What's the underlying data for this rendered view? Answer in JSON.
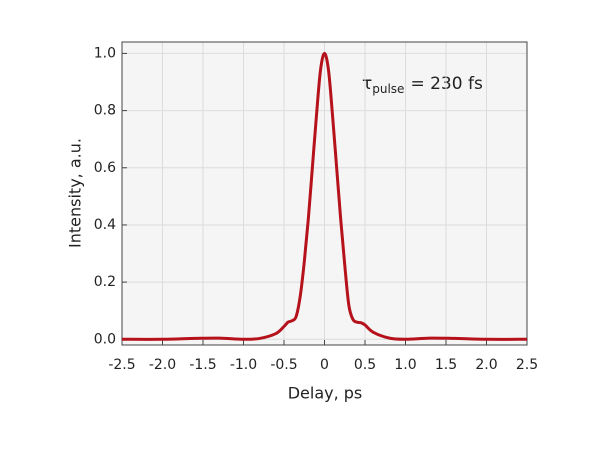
{
  "chart_data": {
    "type": "line",
    "xlabel": "Delay, ps",
    "ylabel": "Intensity, a.u.",
    "annotation": {
      "symbol": "τ",
      "subscript": "pulse",
      "text": "= 230 fs"
    },
    "x": [
      -2.5,
      -2.0,
      -1.6,
      -1.3,
      -1.0,
      -0.8,
      -0.6,
      -0.5,
      -0.45,
      -0.4,
      -0.35,
      -0.3,
      -0.25,
      -0.2,
      -0.15,
      -0.1,
      -0.05,
      0,
      0.05,
      0.1,
      0.15,
      0.2,
      0.25,
      0.3,
      0.35,
      0.4,
      0.45,
      0.5,
      0.6,
      0.8,
      1.0,
      1.3,
      1.6,
      2.0,
      2.5
    ],
    "series": [
      {
        "color": "#b5121b",
        "values": [
          0.0,
          0.0,
          0.003,
          0.004,
          0.0,
          0.003,
          0.02,
          0.045,
          0.06,
          0.065,
          0.08,
          0.15,
          0.27,
          0.42,
          0.6,
          0.78,
          0.94,
          1.0,
          0.94,
          0.78,
          0.6,
          0.42,
          0.26,
          0.12,
          0.07,
          0.06,
          0.058,
          0.05,
          0.025,
          0.004,
          0.0,
          0.004,
          0.003,
          0.0,
          0.0
        ]
      }
    ],
    "xlim": [
      -2.5,
      2.5
    ],
    "xticks": [
      -2.5,
      {
        "value": -2.0,
        "label": "-2.0"
      },
      -1.5,
      {
        "value": -1.0,
        "label": "-1.0"
      },
      -0.5,
      0,
      0.5,
      {
        "value": 1.0,
        "label": "1.0"
      },
      1.5,
      {
        "value": 2.0,
        "label": "2.0"
      },
      2.5
    ],
    "ylim": [
      -0.02,
      1.04
    ],
    "yticks": [
      {
        "value": 0.0,
        "label": "0.0"
      },
      0.2,
      0.4,
      0.6,
      0.8,
      {
        "value": 1.0,
        "label": "1.0"
      }
    ],
    "grid": true
  }
}
